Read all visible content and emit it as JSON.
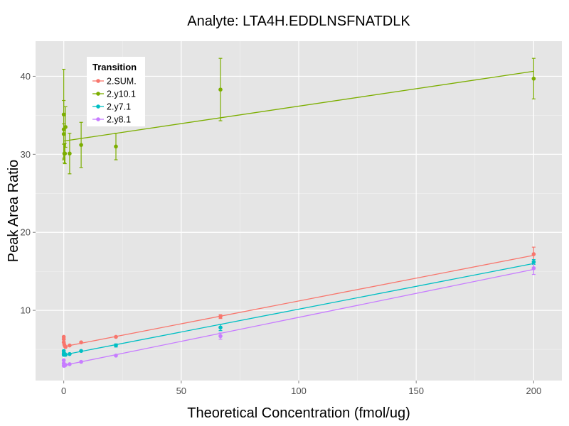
{
  "chart_data": {
    "type": "scatter",
    "title": "Analyte: LTA4H.EDDLNSFNATDLK",
    "xlabel": "Theoretical Concentration (fmol/ug)",
    "ylabel": "Peak Area Ratio",
    "xlim": [
      -12,
      212
    ],
    "ylim": [
      1.0,
      44.5
    ],
    "x_ticks": [
      0,
      50,
      100,
      150,
      200
    ],
    "y_ticks": [
      10,
      20,
      30,
      40
    ],
    "grid": true,
    "legend_title": "Transition",
    "legend_position": "top-left",
    "series": [
      {
        "name": "2.SUM.",
        "color": "#F8766D",
        "points": [
          {
            "x": 0,
            "y": 6.6,
            "err": 0
          },
          {
            "x": 0,
            "y": 6.3,
            "err": 0
          },
          {
            "x": 0,
            "y": 5.9,
            "err": 0
          },
          {
            "x": 0.25,
            "y": 5.6,
            "err": 0
          },
          {
            "x": 0.5,
            "y": 5.4,
            "err": 0
          },
          {
            "x": 0.75,
            "y": 5.3,
            "err": 0
          },
          {
            "x": 2.5,
            "y": 5.5,
            "err": 0
          },
          {
            "x": 7.4,
            "y": 5.9,
            "err": 0
          },
          {
            "x": 22.2,
            "y": 6.6,
            "err": 0
          },
          {
            "x": 66.7,
            "y": 9.2,
            "err": 0.25
          },
          {
            "x": 200,
            "y": 17.2,
            "err": 0.9
          }
        ],
        "fit": {
          "intercept": 5.35,
          "slope": 0.0585
        }
      },
      {
        "name": "2.y10.1",
        "color": "#7CAE00",
        "points": [
          {
            "x": 0,
            "y": 35.1,
            "err": 5.8
          },
          {
            "x": 0,
            "y": 33.2,
            "err": 3.7
          },
          {
            "x": 0,
            "y": 32.6,
            "err": 1.3
          },
          {
            "x": 0.25,
            "y": 30.1,
            "err": 1.2
          },
          {
            "x": 0.5,
            "y": 30.1,
            "err": 1.3
          },
          {
            "x": 0.75,
            "y": 33.5,
            "err": 2.6
          },
          {
            "x": 2.5,
            "y": 30.1,
            "err": 2.6
          },
          {
            "x": 7.4,
            "y": 31.2,
            "err": 2.9
          },
          {
            "x": 22.2,
            "y": 31.0,
            "err": 1.7
          },
          {
            "x": 66.7,
            "y": 38.3,
            "err": 4.0
          },
          {
            "x": 200,
            "y": 39.7,
            "err": 2.6
          }
        ],
        "fit": {
          "intercept": 31.7,
          "slope": 0.0447
        }
      },
      {
        "name": "2.y7.1",
        "color": "#00BFC4",
        "points": [
          {
            "x": 0,
            "y": 4.8,
            "err": 0
          },
          {
            "x": 0,
            "y": 4.5,
            "err": 0
          },
          {
            "x": 0,
            "y": 4.3,
            "err": 0
          },
          {
            "x": 0.25,
            "y": 4.3,
            "err": 0
          },
          {
            "x": 0.5,
            "y": 4.4,
            "err": 0
          },
          {
            "x": 0.75,
            "y": 4.3,
            "err": 0
          },
          {
            "x": 2.5,
            "y": 4.4,
            "err": 0
          },
          {
            "x": 7.4,
            "y": 4.8,
            "err": 0
          },
          {
            "x": 22.2,
            "y": 5.5,
            "err": 0.2
          },
          {
            "x": 66.7,
            "y": 7.8,
            "err": 0.4
          },
          {
            "x": 200,
            "y": 16.2,
            "err": 0.3
          }
        ],
        "fit": {
          "intercept": 4.3,
          "slope": 0.0585
        }
      },
      {
        "name": "2.y8.1",
        "color": "#C77CFF",
        "points": [
          {
            "x": 0,
            "y": 3.6,
            "err": 0
          },
          {
            "x": 0,
            "y": 3.2,
            "err": 0
          },
          {
            "x": 0,
            "y": 2.9,
            "err": 0
          },
          {
            "x": 0.25,
            "y": 2.9,
            "err": 0
          },
          {
            "x": 0.5,
            "y": 3.0,
            "err": 0
          },
          {
            "x": 0.75,
            "y": 3.0,
            "err": 0
          },
          {
            "x": 2.5,
            "y": 3.1,
            "err": 0
          },
          {
            "x": 7.4,
            "y": 3.4,
            "err": 0
          },
          {
            "x": 22.2,
            "y": 4.2,
            "err": 0
          },
          {
            "x": 66.7,
            "y": 6.7,
            "err": 0.4
          },
          {
            "x": 200,
            "y": 15.4,
            "err": 0.8
          }
        ],
        "fit": {
          "intercept": 2.95,
          "slope": 0.0615
        }
      }
    ]
  }
}
